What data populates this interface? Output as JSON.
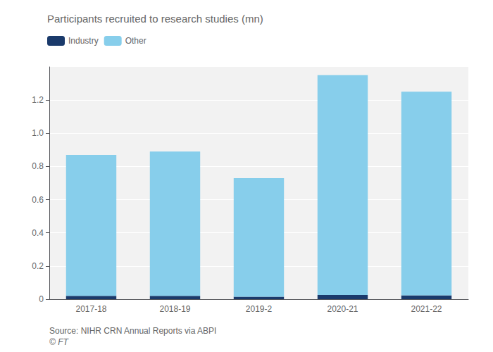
{
  "chart_data": {
    "type": "bar",
    "title": "Participants recruited to research studies (mn)",
    "categories": [
      "2017-18",
      "2018-19",
      "2019-2",
      "2020-21",
      "2021-22"
    ],
    "series": [
      {
        "name": "Industry",
        "color": "#1a3a6b",
        "values": [
          0.02,
          0.02,
          0.015,
          0.025,
          0.023
        ]
      },
      {
        "name": "Other",
        "color": "#87ceeb",
        "values": [
          0.85,
          0.87,
          0.715,
          1.325,
          1.227
        ]
      }
    ],
    "stacked": true,
    "ylim": [
      0,
      1.4
    ],
    "yticks": [
      0,
      0.2,
      0.4,
      0.6,
      0.8,
      {
        "value": 1.0,
        "label": "1.0"
      },
      1.2
    ],
    "grid": true,
    "legend": "upper left",
    "annotations": [
      "Source: NIHR CRN Annual Reports via ABPI",
      "© FT"
    ]
  }
}
